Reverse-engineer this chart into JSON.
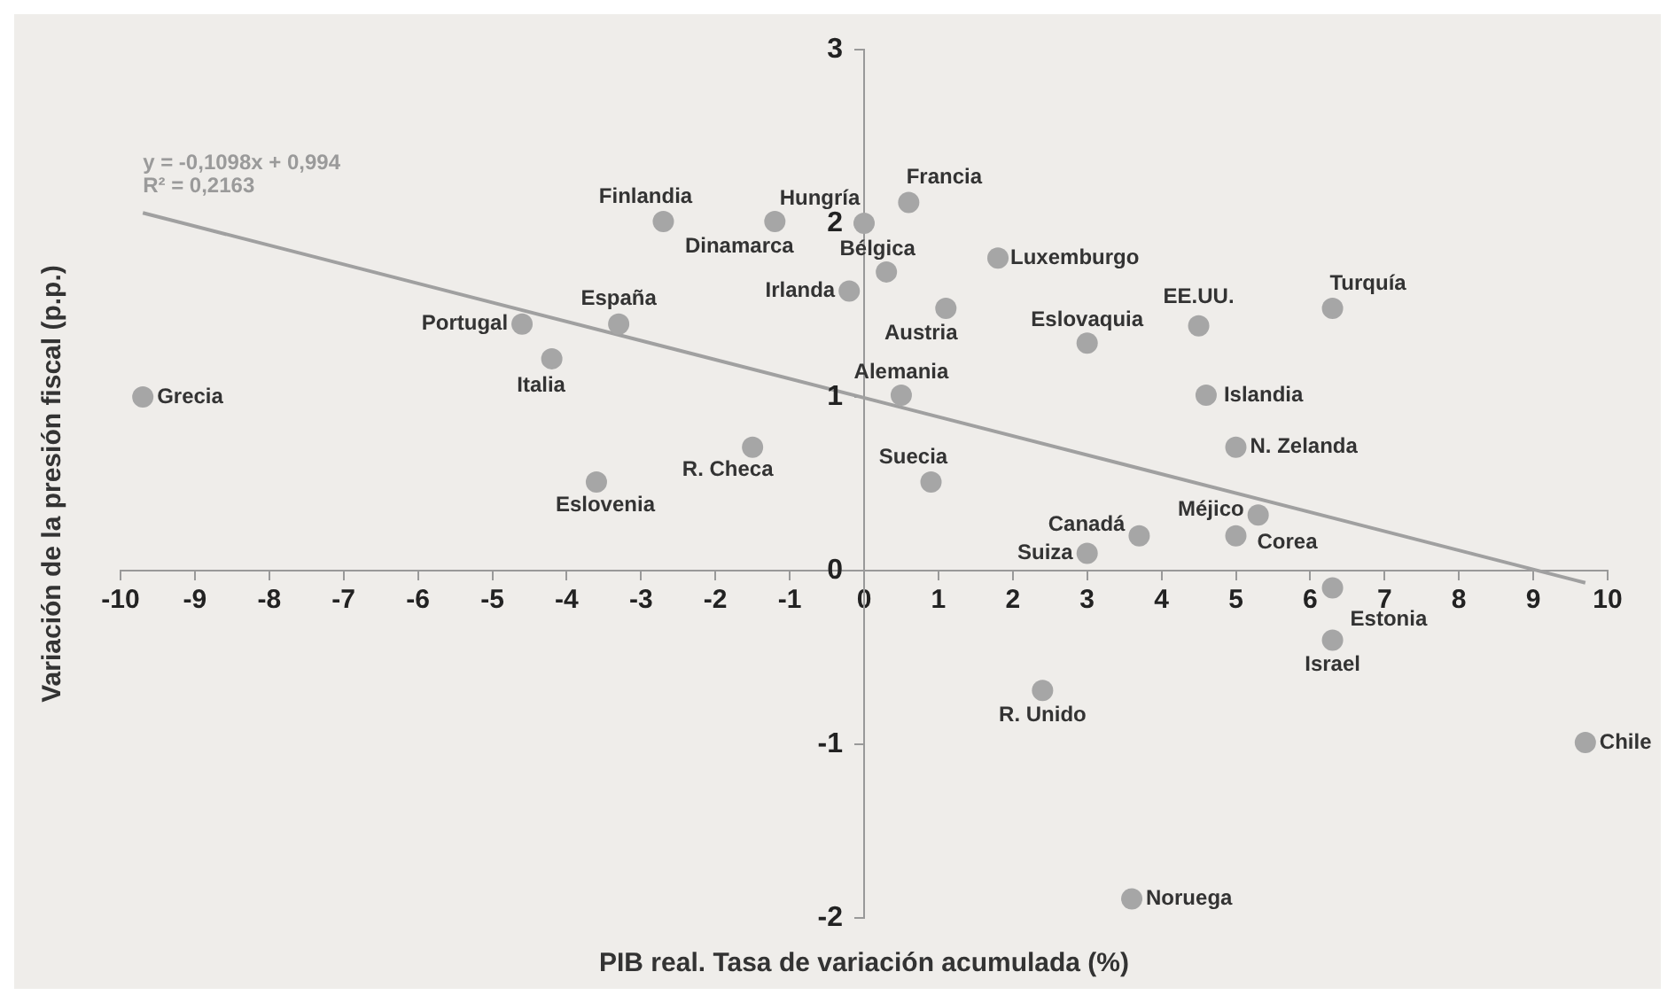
{
  "chart_data": {
    "type": "scatter",
    "xlabel": "PIB real. Tasa de variación acumulada (%)",
    "ylabel": "Variación de la presión fiscal (p.p.)",
    "xlim": [
      -10,
      10
    ],
    "xticks": [
      -10,
      -9,
      -8,
      -7,
      -6,
      -5,
      -4,
      -3,
      -2,
      -1,
      0,
      1,
      2,
      3,
      4,
      5,
      6,
      7,
      8,
      9,
      10
    ],
    "ylim": [
      -2,
      3
    ],
    "yticks": [
      -2,
      -1,
      0,
      1,
      2,
      3
    ],
    "grid": false,
    "legend": false,
    "series": [
      {
        "type": "scatter",
        "color": "#a6a6a6",
        "marker": "circle",
        "x": [
          -9.7,
          -4.6,
          -3.3,
          -4.2,
          -2.7,
          -1.2,
          0.0,
          0.6,
          0.3,
          -0.2,
          1.1,
          1.8,
          3.0,
          4.5,
          6.3,
          0.5,
          4.6,
          5.0,
          -1.5,
          -3.6,
          0.9,
          3.7,
          5.3,
          5.0,
          3.0,
          6.3,
          6.3,
          2.4,
          9.7,
          3.6
        ],
        "values": [
          1.0,
          1.42,
          1.42,
          1.22,
          2.01,
          2.01,
          2.0,
          2.12,
          1.72,
          1.61,
          1.51,
          1.8,
          1.31,
          1.41,
          1.51,
          1.01,
          1.01,
          0.71,
          0.71,
          0.51,
          0.51,
          0.2,
          0.32,
          0.2,
          0.1,
          -0.1,
          -0.4,
          -0.69,
          -0.99,
          -1.89
        ]
      },
      {
        "type": "line",
        "color": "#a0a0a0",
        "marker": "none",
        "x": [
          -9.7,
          9.7
        ],
        "values": [
          2.06,
          -0.07
        ]
      }
    ],
    "annotations": [
      {
        "text": "Grecia",
        "x": -9.7,
        "y": 1.0
      },
      {
        "text": "Portugal",
        "x": -4.6,
        "y": 1.42
      },
      {
        "text": "España",
        "x": -3.3,
        "y": 1.42
      },
      {
        "text": "Italia",
        "x": -4.2,
        "y": 1.22
      },
      {
        "text": "Finlandia",
        "x": -2.7,
        "y": 2.01
      },
      {
        "text": "Dinamarca",
        "x": -1.2,
        "y": 2.01
      },
      {
        "text": "Hungría",
        "x": 0.0,
        "y": 2.0
      },
      {
        "text": "Francia",
        "x": 0.6,
        "y": 2.12
      },
      {
        "text": "Bélgica",
        "x": 0.3,
        "y": 1.72
      },
      {
        "text": "Irlanda",
        "x": -0.2,
        "y": 1.61
      },
      {
        "text": "Austria",
        "x": 1.1,
        "y": 1.51
      },
      {
        "text": "Luxemburgo",
        "x": 1.8,
        "y": 1.8
      },
      {
        "text": "Eslovaquia",
        "x": 3.0,
        "y": 1.31
      },
      {
        "text": "EE.UU.",
        "x": 4.5,
        "y": 1.41
      },
      {
        "text": "Turquía",
        "x": 6.3,
        "y": 1.51
      },
      {
        "text": "Alemania",
        "x": 0.5,
        "y": 1.01
      },
      {
        "text": "Islandia",
        "x": 4.6,
        "y": 1.01
      },
      {
        "text": "N. Zelanda",
        "x": 5.0,
        "y": 0.71
      },
      {
        "text": "R. Checa",
        "x": -1.5,
        "y": 0.71
      },
      {
        "text": "Eslovenia",
        "x": -3.6,
        "y": 0.51
      },
      {
        "text": "Suecia",
        "x": 0.9,
        "y": 0.51
      },
      {
        "text": "Canadá",
        "x": 3.7,
        "y": 0.2
      },
      {
        "text": "Méjico",
        "x": 5.3,
        "y": 0.32
      },
      {
        "text": "Corea",
        "x": 5.0,
        "y": 0.2
      },
      {
        "text": "Suiza",
        "x": 3.0,
        "y": 0.1
      },
      {
        "text": "Estonia",
        "x": 6.3,
        "y": -0.1
      },
      {
        "text": "Israel",
        "x": 6.3,
        "y": -0.4
      },
      {
        "text": "R. Unido",
        "x": 2.4,
        "y": -0.69
      },
      {
        "text": "Chile",
        "x": 9.7,
        "y": -0.99
      },
      {
        "text": "Noruega",
        "x": 3.6,
        "y": -1.89
      },
      "y = -0,1098x + 0,994",
      "R² = 0,2163"
    ]
  }
}
